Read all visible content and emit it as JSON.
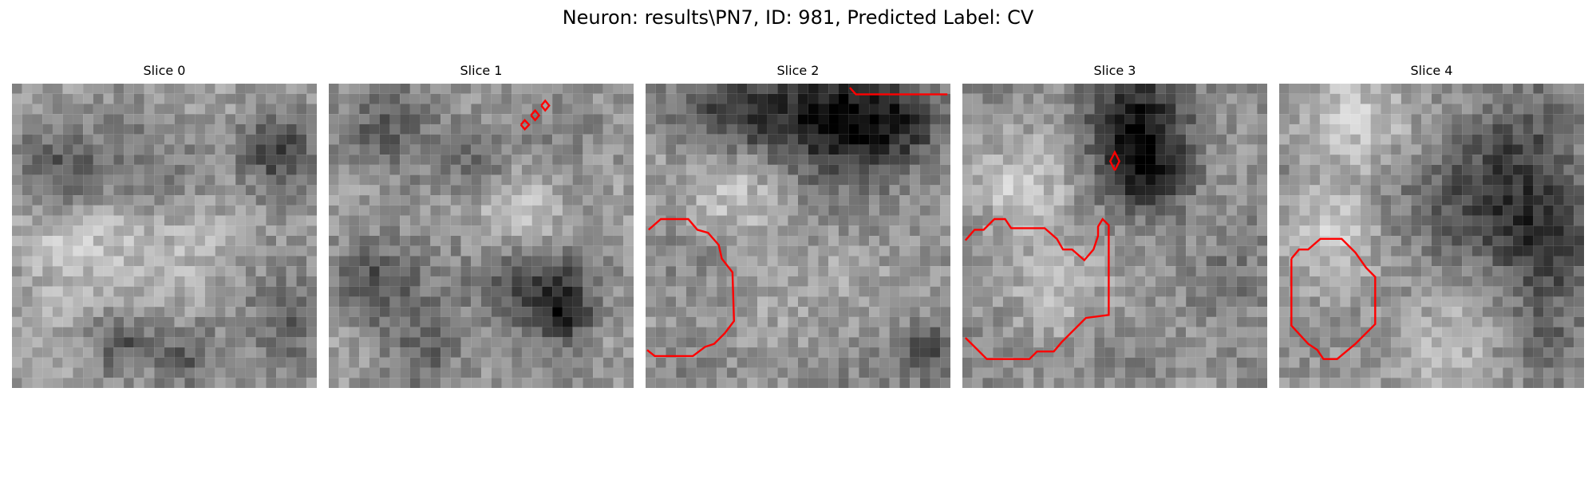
{
  "figure": {
    "title": "Neuron: results\\PN7, ID: 981, Predicted Label: CV",
    "contour_color": "#ff0000"
  },
  "slices": [
    {
      "title": "Slice 0",
      "contours": []
    },
    {
      "title": "Slice 1",
      "contours": [
        [
          [
            0.63,
            0.135
          ],
          [
            0.643,
            0.12
          ],
          [
            0.657,
            0.135
          ],
          [
            0.643,
            0.15
          ],
          [
            0.63,
            0.135
          ]
        ],
        [
          [
            0.663,
            0.104
          ],
          [
            0.677,
            0.088
          ],
          [
            0.69,
            0.104
          ],
          [
            0.677,
            0.12
          ],
          [
            0.663,
            0.104
          ]
        ],
        [
          [
            0.697,
            0.072
          ],
          [
            0.71,
            0.056
          ],
          [
            0.723,
            0.072
          ],
          [
            0.71,
            0.088
          ],
          [
            0.697,
            0.072
          ]
        ]
      ]
    },
    {
      "title": "Slice 2",
      "contours": [
        [
          [
            0.67,
            0.013
          ],
          [
            0.69,
            0.035
          ],
          [
            0.99,
            0.035
          ]
        ],
        [
          [
            0.01,
            0.48
          ],
          [
            0.05,
            0.445
          ],
          [
            0.14,
            0.445
          ],
          [
            0.17,
            0.48
          ],
          [
            0.205,
            0.49
          ],
          [
            0.24,
            0.53
          ],
          [
            0.25,
            0.575
          ],
          [
            0.285,
            0.62
          ],
          [
            0.29,
            0.78
          ],
          [
            0.26,
            0.82
          ],
          [
            0.225,
            0.855
          ],
          [
            0.195,
            0.865
          ],
          [
            0.155,
            0.895
          ],
          [
            0.03,
            0.895
          ],
          [
            0.005,
            0.875
          ]
        ]
      ]
    },
    {
      "title": "Slice 3",
      "contours": [
        [
          [
            0.01,
            0.515
          ],
          [
            0.04,
            0.48
          ],
          [
            0.07,
            0.48
          ],
          [
            0.105,
            0.445
          ],
          [
            0.14,
            0.445
          ],
          [
            0.16,
            0.475
          ],
          [
            0.27,
            0.475
          ],
          [
            0.31,
            0.51
          ],
          [
            0.33,
            0.545
          ],
          [
            0.36,
            0.545
          ],
          [
            0.4,
            0.58
          ],
          [
            0.43,
            0.545
          ],
          [
            0.445,
            0.5
          ],
          [
            0.445,
            0.47
          ],
          [
            0.46,
            0.445
          ],
          [
            0.48,
            0.465
          ],
          [
            0.48,
            0.76
          ],
          [
            0.405,
            0.77
          ],
          [
            0.325,
            0.85
          ],
          [
            0.3,
            0.88
          ],
          [
            0.245,
            0.88
          ],
          [
            0.22,
            0.905
          ],
          [
            0.08,
            0.905
          ],
          [
            0.04,
            0.865
          ],
          [
            0.01,
            0.835
          ]
        ],
        [
          [
            0.5,
            0.285
          ],
          [
            0.485,
            0.255
          ],
          [
            0.5,
            0.225
          ],
          [
            0.515,
            0.255
          ],
          [
            0.5,
            0.285
          ]
        ]
      ]
    },
    {
      "title": "Slice 4",
      "contours": [
        [
          [
            0.04,
            0.575
          ],
          [
            0.065,
            0.545
          ],
          [
            0.095,
            0.545
          ],
          [
            0.135,
            0.51
          ],
          [
            0.205,
            0.51
          ],
          [
            0.25,
            0.555
          ],
          [
            0.285,
            0.605
          ],
          [
            0.315,
            0.635
          ],
          [
            0.315,
            0.79
          ],
          [
            0.25,
            0.855
          ],
          [
            0.19,
            0.905
          ],
          [
            0.145,
            0.905
          ],
          [
            0.125,
            0.875
          ],
          [
            0.095,
            0.855
          ],
          [
            0.04,
            0.795
          ],
          [
            0.04,
            0.575
          ]
        ]
      ]
    }
  ]
}
